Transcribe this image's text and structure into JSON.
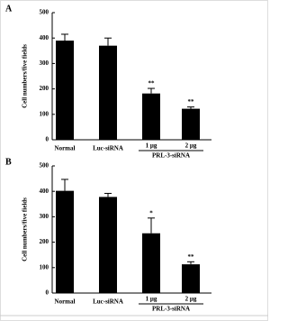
{
  "chart_data": [
    {
      "type": "bar",
      "panel_label": "A",
      "ylabel": "Cell numbers/five fields",
      "categories": [
        "Normal",
        "Luc-siRNA",
        "1 μg",
        "2 μg"
      ],
      "group_label": "PRL-3-siRNA",
      "values": [
        390,
        370,
        182,
        122
      ],
      "errors": [
        25,
        30,
        20,
        7
      ],
      "annotations": [
        null,
        null,
        "**",
        "**"
      ],
      "color": "#000000",
      "ylim": [
        0,
        500
      ],
      "yticks": [
        0,
        100,
        200,
        300,
        400,
        500
      ]
    },
    {
      "type": "bar",
      "panel_label": "B",
      "ylabel": "Cell numbers/five fields",
      "categories": [
        "Normal",
        "Luc-siRNA",
        "1 μg",
        "2 μg"
      ],
      "group_label": "PRL-3-siRNA",
      "values": [
        402,
        378,
        235,
        113
      ],
      "errors": [
        45,
        14,
        60,
        10
      ],
      "annotations": [
        null,
        null,
        "*",
        "**"
      ],
      "color": "#000000",
      "ylim": [
        0,
        500
      ],
      "yticks": [
        0,
        100,
        200,
        300,
        400,
        500
      ]
    }
  ]
}
